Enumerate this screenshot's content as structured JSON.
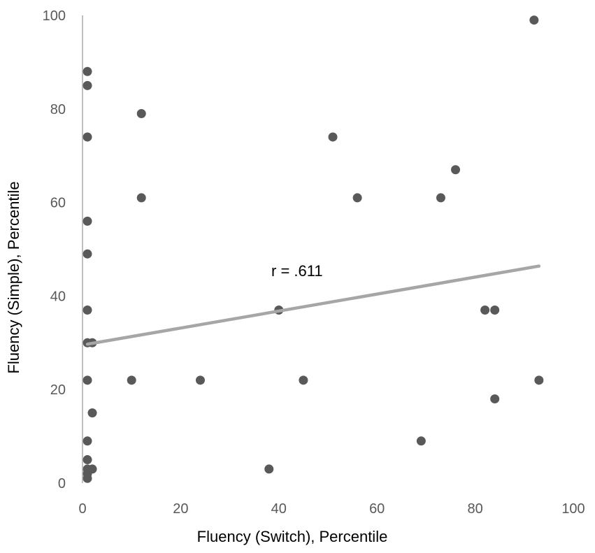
{
  "chart_data": {
    "type": "scatter",
    "xlabel": "Fluency (Switch), Percentile",
    "ylabel": "Fluency (Simple), Percentile",
    "xlim": [
      0,
      100
    ],
    "ylim": [
      0,
      100
    ],
    "x_ticks": [
      0,
      20,
      40,
      60,
      80,
      100
    ],
    "y_ticks": [
      0,
      20,
      40,
      60,
      80,
      100
    ],
    "grid": false,
    "annotation": "r = .611",
    "colors": {
      "points": "#595959",
      "trendline": "#a6a6a6",
      "axis": "#bfbfbf",
      "ticks": "#595959"
    },
    "points": [
      {
        "x": 1,
        "y": 88
      },
      {
        "x": 1,
        "y": 85
      },
      {
        "x": 1,
        "y": 74
      },
      {
        "x": 1,
        "y": 56
      },
      {
        "x": 1,
        "y": 49
      },
      {
        "x": 1,
        "y": 37
      },
      {
        "x": 1,
        "y": 30
      },
      {
        "x": 2,
        "y": 30
      },
      {
        "x": 1,
        "y": 22
      },
      {
        "x": 2,
        "y": 15
      },
      {
        "x": 1,
        "y": 9
      },
      {
        "x": 1,
        "y": 5
      },
      {
        "x": 1,
        "y": 3
      },
      {
        "x": 2,
        "y": 3
      },
      {
        "x": 1,
        "y": 2
      },
      {
        "x": 1,
        "y": 1
      },
      {
        "x": 12,
        "y": 79
      },
      {
        "x": 12,
        "y": 61
      },
      {
        "x": 10,
        "y": 22
      },
      {
        "x": 24,
        "y": 22
      },
      {
        "x": 38,
        "y": 3
      },
      {
        "x": 40,
        "y": 37
      },
      {
        "x": 45,
        "y": 22
      },
      {
        "x": 51,
        "y": 74
      },
      {
        "x": 56,
        "y": 61
      },
      {
        "x": 69,
        "y": 9
      },
      {
        "x": 73,
        "y": 61
      },
      {
        "x": 76,
        "y": 67
      },
      {
        "x": 82,
        "y": 37
      },
      {
        "x": 84,
        "y": 37
      },
      {
        "x": 84,
        "y": 18
      },
      {
        "x": 92,
        "y": 99
      },
      {
        "x": 93,
        "y": 22
      }
    ],
    "trendline": {
      "x": [
        1,
        93
      ],
      "y": [
        29.7,
        46.4
      ]
    }
  }
}
